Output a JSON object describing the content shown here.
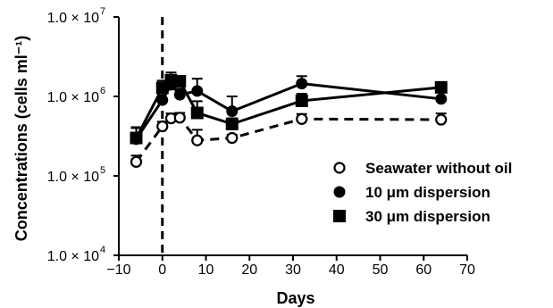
{
  "chart_data": {
    "type": "line",
    "xlabel": "Days",
    "ylabel": "Concentrations (cells ml⁻¹)",
    "xlim": [
      -10,
      70
    ],
    "ylim": [
      10000,
      10000000
    ],
    "yscale": "log",
    "x_ticks": [
      -10,
      0,
      10,
      20,
      30,
      40,
      50,
      60,
      70
    ],
    "x_tick_labels": [
      "−10",
      "0",
      "10",
      "20",
      "30",
      "40",
      "50",
      "60",
      "70"
    ],
    "y_ticks": [
      {
        "value": 10000,
        "mantissa": "1.0 × 10",
        "exp": "4"
      },
      {
        "value": 100000,
        "mantissa": "1.0 × 10",
        "exp": "5"
      },
      {
        "value": 1000000,
        "mantissa": "1.0 × 10",
        "exp": "6"
      },
      {
        "value": 10000000,
        "mantissa": "1.0 × 10",
        "exp": "7"
      }
    ],
    "reference_line_x": 0,
    "grid": false,
    "legend_position": "right",
    "series": [
      {
        "name": "Seawater without oil",
        "marker": "open-circle",
        "line": "dashed",
        "x": [
          -6,
          0,
          2,
          4,
          8,
          16,
          32,
          64
        ],
        "y": [
          150000,
          420000,
          530000,
          540000,
          280000,
          300000,
          520000,
          510000
        ],
        "err": [
          30000,
          60000,
          80000,
          80000,
          100000,
          30000,
          80000,
          100000
        ]
      },
      {
        "name": "10 μm dispersion",
        "marker": "filled-circle",
        "line": "solid",
        "x": [
          -6,
          0,
          2,
          4,
          8,
          16,
          32,
          64
        ],
        "y": [
          290000,
          900000,
          1400000,
          1050000,
          1170000,
          650000,
          1450000,
          930000
        ],
        "err": [
          120000,
          200000,
          300000,
          200000,
          500000,
          350000,
          350000,
          250000
        ]
      },
      {
        "name": "30 μm dispersion",
        "marker": "filled-square",
        "line": "solid",
        "x": [
          -6,
          0,
          2,
          4,
          8,
          16,
          32,
          64
        ],
        "y": [
          300000,
          1280000,
          1600000,
          1550000,
          620000,
          450000,
          880000,
          1300000
        ],
        "err": [
          100000,
          300000,
          400000,
          200000,
          250000,
          80000,
          200000,
          200000
        ]
      }
    ]
  }
}
